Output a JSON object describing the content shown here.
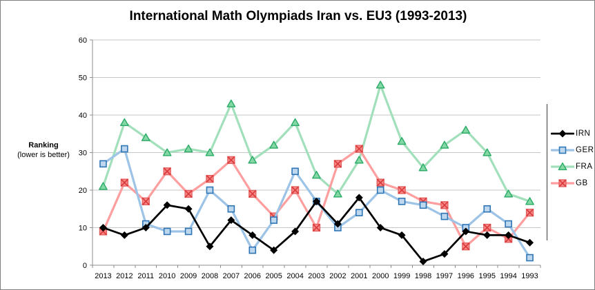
{
  "chart_data": {
    "type": "line",
    "title": "International Math Olympiads Iran vs. EU3 (1993-2013)",
    "xlabel": "",
    "ylabel": "Ranking (lower is better)",
    "ylim": [
      0,
      60
    ],
    "yticks": [
      0,
      10,
      20,
      30,
      40,
      50,
      60
    ],
    "grid": true,
    "legend_position": "right",
    "categories": [
      "2013",
      "2012",
      "2011",
      "2010",
      "2009",
      "2008",
      "2007",
      "2006",
      "2005",
      "2004",
      "2003",
      "2002",
      "2001",
      "2000",
      "1999",
      "1998",
      "1997",
      "1996",
      "1995",
      "1994",
      "1993"
    ],
    "series": [
      {
        "name": "IRN",
        "marker": "diamond",
        "line_color": "#000000",
        "marker_fill": "#000000",
        "marker_stroke": "#000000",
        "values": [
          10,
          8,
          10,
          16,
          15,
          5,
          12,
          8,
          4,
          9,
          17,
          11,
          18,
          10,
          8,
          1,
          3,
          9,
          8,
          8,
          6
        ]
      },
      {
        "name": "GER",
        "marker": "square",
        "line_color": "#9DC3E6",
        "marker_fill": "#BDD7EE",
        "marker_stroke": "#2E75B6",
        "values": [
          27,
          31,
          11,
          9,
          9,
          20,
          15,
          4,
          12,
          25,
          17,
          10,
          14,
          20,
          17,
          16,
          13,
          10,
          15,
          11,
          2
        ]
      },
      {
        "name": "FRA",
        "marker": "triangle",
        "line_color": "#A2E0BC",
        "marker_fill": "#84D8A6",
        "marker_stroke": "#30AD6A",
        "values": [
          21,
          38,
          34,
          30,
          31,
          30,
          43,
          28,
          32,
          38,
          24,
          19,
          28,
          48,
          33,
          26,
          32,
          36,
          30,
          19,
          17
        ]
      },
      {
        "name": "GB",
        "marker": "x-square",
        "line_color": "#FF9E9E",
        "marker_fill": "#F98989",
        "marker_stroke": "#E25A5A",
        "cross_color": "#D93C3C",
        "values": [
          9,
          22,
          17,
          25,
          19,
          23,
          28,
          19,
          13,
          20,
          10,
          27,
          31,
          22,
          20,
          17,
          16,
          5,
          10,
          7,
          14
        ]
      }
    ]
  },
  "y_axis_title": {
    "line1": "Ranking",
    "line2": "(lower is better)"
  },
  "legend": {
    "items": [
      {
        "label": "IRN"
      },
      {
        "label": "GER"
      },
      {
        "label": "FRA"
      },
      {
        "label": "GB"
      }
    ]
  }
}
